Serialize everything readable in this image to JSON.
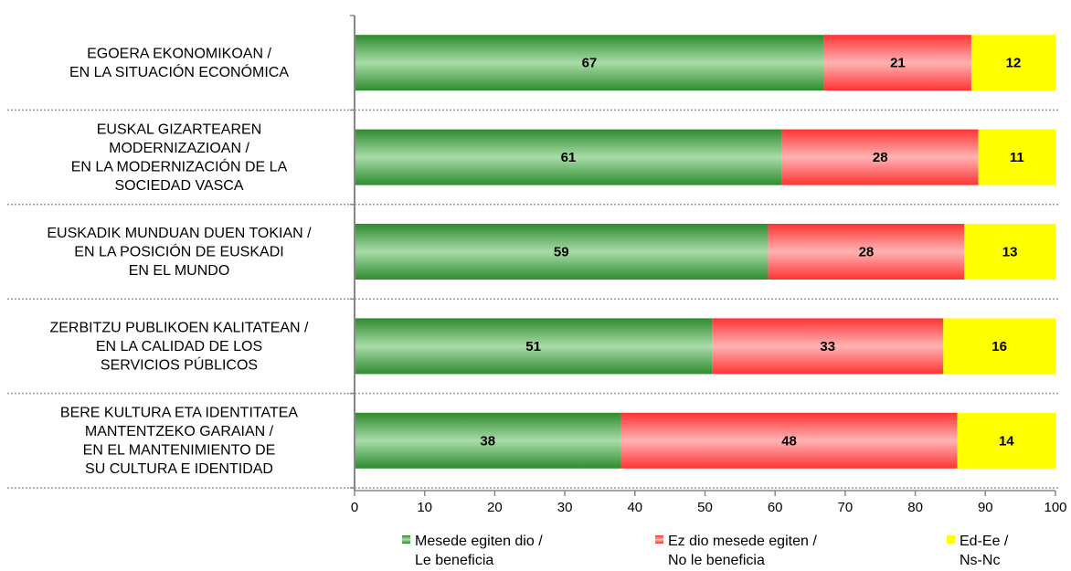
{
  "chart_data": {
    "type": "bar",
    "orientation": "horizontal",
    "stacked": true,
    "title": "",
    "xlabel": "",
    "ylabel": "",
    "xlim": [
      0,
      100
    ],
    "ticks": [
      "0",
      "10",
      "20",
      "30",
      "40",
      "50",
      "60",
      "70",
      "80",
      "90",
      "100"
    ],
    "categories": [
      [
        "EGOERA EKONOMIKOAN /",
        "EN LA SITUACIÓN ECONÓMICA"
      ],
      [
        "EUSKAL GIZARTEAREN",
        "MODERNIZAZIOAN /",
        "EN LA MODERNIZACIÓN DE LA",
        "SOCIEDAD VASCA"
      ],
      [
        "EUSKADIK MUNDUAN DUEN TOKIAN /",
        "EN LA POSICIÓN DE EUSKADI",
        "EN EL MUNDO"
      ],
      [
        "ZERBITZU PUBLIKOEN KALITATEAN /",
        "EN LA CALIDAD DE LOS",
        "SERVICIOS PÚBLICOS"
      ],
      [
        "BERE KULTURA ETA IDENTITATEA",
        "MANTENTZEKO GARAIAN /",
        "EN EL MANTENIMIENTO DE",
        "SU CULTURA E IDENTIDAD"
      ]
    ],
    "series": [
      {
        "name": [
          "Mesede egiten dio /",
          "Le beneficia"
        ],
        "color": "#3a9a3a",
        "values": [
          67,
          61,
          59,
          51,
          38
        ]
      },
      {
        "name": [
          "Ez dio mesede egiten /",
          "No le beneficia"
        ],
        "color": "#ff4d4d",
        "values": [
          21,
          28,
          28,
          33,
          48
        ]
      },
      {
        "name": [
          "Ed-Ee /",
          "Ns-Nc"
        ],
        "color": "#ffff00",
        "values": [
          12,
          11,
          13,
          16,
          14
        ]
      }
    ],
    "grid": false,
    "legend_position": "bottom"
  }
}
